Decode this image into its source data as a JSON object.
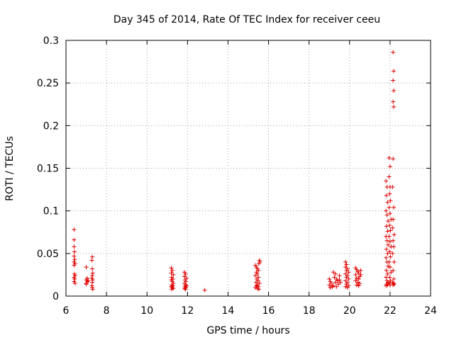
{
  "chart_data": {
    "type": "scatter",
    "title": "Day 345 of 2014, Rate Of TEC Index for receiver ceeu",
    "xlabel": "GPS time / hours",
    "ylabel": "ROTI / TECUs",
    "xlim": [
      6,
      24
    ],
    "ylim": [
      0,
      0.3
    ],
    "xticks": [
      "6",
      "8",
      "10",
      "12",
      "14",
      "16",
      "18",
      "20",
      "22",
      "24"
    ],
    "yticks": [
      "0",
      "0.05",
      "0.1",
      "0.15",
      "0.2",
      "0.25",
      "0.3"
    ],
    "grid": true,
    "marker": "+",
    "series": [
      {
        "name": "ROTI",
        "color": "#e00000",
        "points": [
          [
            6.4,
            0.078
          ],
          [
            6.4,
            0.066
          ],
          [
            6.4,
            0.058
          ],
          [
            6.42,
            0.052
          ],
          [
            6.4,
            0.047
          ],
          [
            6.43,
            0.043
          ],
          [
            6.4,
            0.04
          ],
          [
            6.45,
            0.038
          ],
          [
            6.4,
            0.036
          ],
          [
            6.42,
            0.026
          ],
          [
            6.45,
            0.024
          ],
          [
            6.4,
            0.022
          ],
          [
            6.43,
            0.02
          ],
          [
            6.4,
            0.017
          ],
          [
            6.45,
            0.015
          ],
          [
            7.0,
            0.034
          ],
          [
            7.05,
            0.021
          ],
          [
            7.0,
            0.019
          ],
          [
            7.1,
            0.018
          ],
          [
            7.05,
            0.017
          ],
          [
            7.0,
            0.015
          ],
          [
            7.0,
            0.014
          ],
          [
            7.3,
            0.046
          ],
          [
            7.28,
            0.042
          ],
          [
            7.3,
            0.032
          ],
          [
            7.32,
            0.027
          ],
          [
            7.3,
            0.024
          ],
          [
            7.28,
            0.021
          ],
          [
            7.32,
            0.019
          ],
          [
            7.3,
            0.016
          ],
          [
            7.28,
            0.012
          ],
          [
            7.3,
            0.01
          ],
          [
            7.32,
            0.008
          ],
          [
            11.2,
            0.033
          ],
          [
            11.25,
            0.03
          ],
          [
            11.2,
            0.027
          ],
          [
            11.3,
            0.025
          ],
          [
            11.22,
            0.022
          ],
          [
            11.28,
            0.02
          ],
          [
            11.2,
            0.019
          ],
          [
            11.25,
            0.017
          ],
          [
            11.3,
            0.015
          ],
          [
            11.22,
            0.013
          ],
          [
            11.28,
            0.012
          ],
          [
            11.2,
            0.011
          ],
          [
            11.25,
            0.01
          ],
          [
            11.3,
            0.009
          ],
          [
            11.22,
            0.008
          ],
          [
            11.85,
            0.028
          ],
          [
            11.9,
            0.026
          ],
          [
            11.85,
            0.023
          ],
          [
            11.95,
            0.021
          ],
          [
            11.88,
            0.019
          ],
          [
            11.92,
            0.017
          ],
          [
            11.85,
            0.015
          ],
          [
            11.9,
            0.013
          ],
          [
            11.95,
            0.012
          ],
          [
            11.88,
            0.011
          ],
          [
            11.92,
            0.01
          ],
          [
            11.85,
            0.009
          ],
          [
            11.9,
            0.008
          ],
          [
            12.85,
            0.007
          ],
          [
            15.35,
            0.036
          ],
          [
            15.4,
            0.034
          ],
          [
            15.45,
            0.032
          ],
          [
            15.5,
            0.03
          ],
          [
            15.55,
            0.042
          ],
          [
            15.58,
            0.04
          ],
          [
            15.52,
            0.038
          ],
          [
            15.4,
            0.028
          ],
          [
            15.45,
            0.026
          ],
          [
            15.35,
            0.024
          ],
          [
            15.5,
            0.022
          ],
          [
            15.42,
            0.02
          ],
          [
            15.48,
            0.018
          ],
          [
            15.38,
            0.016
          ],
          [
            15.55,
            0.015
          ],
          [
            15.45,
            0.013
          ],
          [
            15.4,
            0.012
          ],
          [
            15.5,
            0.011
          ],
          [
            15.35,
            0.01
          ],
          [
            15.45,
            0.009
          ],
          [
            15.52,
            0.008
          ],
          [
            19.0,
            0.02
          ],
          [
            19.05,
            0.017
          ],
          [
            19.1,
            0.015
          ],
          [
            19.0,
            0.013
          ],
          [
            19.15,
            0.011
          ],
          [
            19.05,
            0.01
          ],
          [
            19.2,
            0.028
          ],
          [
            19.3,
            0.026
          ],
          [
            19.25,
            0.022
          ],
          [
            19.35,
            0.02
          ],
          [
            19.4,
            0.018
          ],
          [
            19.3,
            0.016
          ],
          [
            19.45,
            0.014
          ],
          [
            19.2,
            0.012
          ],
          [
            19.35,
            0.011
          ],
          [
            19.5,
            0.024
          ],
          [
            19.5,
            0.019
          ],
          [
            19.55,
            0.016
          ],
          [
            19.8,
            0.04
          ],
          [
            19.85,
            0.037
          ],
          [
            19.8,
            0.034
          ],
          [
            19.9,
            0.032
          ],
          [
            19.85,
            0.03
          ],
          [
            19.95,
            0.028
          ],
          [
            19.8,
            0.026
          ],
          [
            19.9,
            0.024
          ],
          [
            19.85,
            0.022
          ],
          [
            19.95,
            0.02
          ],
          [
            19.8,
            0.018
          ],
          [
            19.9,
            0.016
          ],
          [
            19.85,
            0.014
          ],
          [
            19.95,
            0.012
          ],
          [
            19.8,
            0.011
          ],
          [
            19.9,
            0.01
          ],
          [
            20.3,
            0.033
          ],
          [
            20.35,
            0.031
          ],
          [
            20.4,
            0.029
          ],
          [
            20.45,
            0.027
          ],
          [
            20.3,
            0.025
          ],
          [
            20.5,
            0.023
          ],
          [
            20.35,
            0.021
          ],
          [
            20.45,
            0.02
          ],
          [
            20.3,
            0.018
          ],
          [
            20.4,
            0.016
          ],
          [
            20.5,
            0.015
          ],
          [
            20.35,
            0.013
          ],
          [
            20.45,
            0.012
          ],
          [
            20.55,
            0.03
          ],
          [
            20.55,
            0.025
          ],
          [
            21.8,
            0.135
          ],
          [
            21.85,
            0.128
          ],
          [
            21.82,
            0.118
          ],
          [
            21.88,
            0.11
          ],
          [
            21.8,
            0.1
          ],
          [
            21.85,
            0.095
          ],
          [
            21.9,
            0.088
          ],
          [
            21.82,
            0.082
          ],
          [
            21.88,
            0.076
          ],
          [
            21.8,
            0.07
          ],
          [
            21.85,
            0.065
          ],
          [
            21.9,
            0.06
          ],
          [
            21.82,
            0.055
          ],
          [
            21.88,
            0.05
          ],
          [
            21.8,
            0.045
          ],
          [
            21.85,
            0.04
          ],
          [
            21.9,
            0.035
          ],
          [
            21.82,
            0.03
          ],
          [
            21.88,
            0.026
          ],
          [
            21.8,
            0.022
          ],
          [
            21.85,
            0.018
          ],
          [
            21.9,
            0.016
          ],
          [
            21.82,
            0.014
          ],
          [
            21.88,
            0.013
          ],
          [
            21.8,
            0.012
          ],
          [
            21.95,
            0.162
          ],
          [
            22.0,
            0.152
          ],
          [
            21.95,
            0.14
          ],
          [
            22.0,
            0.128
          ],
          [
            21.98,
            0.12
          ],
          [
            22.02,
            0.112
          ],
          [
            21.95,
            0.104
          ],
          [
            22.0,
            0.097
          ],
          [
            22.05,
            0.09
          ],
          [
            21.98,
            0.083
          ],
          [
            22.02,
            0.077
          ],
          [
            21.95,
            0.07
          ],
          [
            22.0,
            0.064
          ],
          [
            22.05,
            0.058
          ],
          [
            21.98,
            0.052
          ],
          [
            22.02,
            0.046
          ],
          [
            21.95,
            0.04
          ],
          [
            22.0,
            0.034
          ],
          [
            22.05,
            0.028
          ],
          [
            21.98,
            0.022
          ],
          [
            22.02,
            0.018
          ],
          [
            21.95,
            0.015
          ],
          [
            22.0,
            0.013
          ],
          [
            22.15,
            0.286
          ],
          [
            22.18,
            0.264
          ],
          [
            22.15,
            0.253
          ],
          [
            22.18,
            0.241
          ],
          [
            22.15,
            0.228
          ],
          [
            22.18,
            0.222
          ],
          [
            22.15,
            0.161
          ],
          [
            22.12,
            0.128
          ],
          [
            22.18,
            0.104
          ],
          [
            22.15,
            0.09
          ],
          [
            22.12,
            0.08
          ],
          [
            22.2,
            0.072
          ],
          [
            22.15,
            0.065
          ],
          [
            22.18,
            0.058
          ],
          [
            22.12,
            0.05
          ],
          [
            22.2,
            0.04
          ],
          [
            22.15,
            0.03
          ],
          [
            22.18,
            0.02
          ],
          [
            22.12,
            0.016
          ],
          [
            22.2,
            0.014
          ],
          [
            22.15,
            0.013
          ],
          [
            22.18,
            0.015
          ]
        ]
      }
    ]
  }
}
